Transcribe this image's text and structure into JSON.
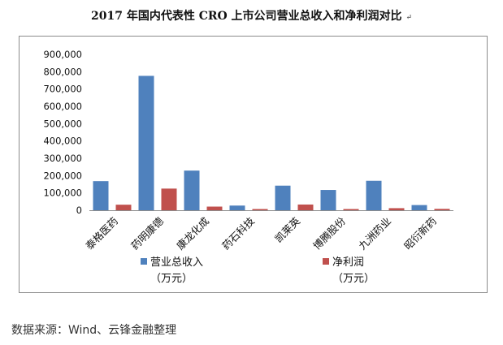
{
  "title": "2017 年国内代表性 CRO 上市公司营业总收入和净利润对比",
  "title_mark": "↵",
  "source": "数据来源：Wind、云锋金融整理",
  "chart_data": {
    "type": "bar",
    "title": "2017 年国内代表性 CRO 上市公司营业总收入和净利润对比",
    "categories": [
      "泰格医药",
      "药明康德",
      "康龙化成",
      "药石科技",
      "凯莱英",
      "博腾股份",
      "九洲药业",
      "昭衍新药"
    ],
    "ylim": [
      0,
      900000
    ],
    "yticks": [
      0,
      100000,
      200000,
      300000,
      400000,
      500000,
      600000,
      700000,
      800000,
      900000
    ],
    "ytick_labels": [
      "0",
      "100,000",
      "200,000",
      "300,000",
      "400,000",
      "500,000",
      "600,000",
      "700,000",
      "800,000",
      "900,000"
    ],
    "grid": false,
    "legend_position": "bottom",
    "series": [
      {
        "name": "营业总收入",
        "unit": "（万元）",
        "color": "#4f81bd",
        "values": [
          168000,
          776000,
          229000,
          27000,
          142000,
          117000,
          170000,
          30000
        ]
      },
      {
        "name": "净利润",
        "unit": "（万元）",
        "color": "#c0504d",
        "values": [
          32000,
          125000,
          21000,
          7000,
          33000,
          7000,
          12000,
          8000
        ]
      }
    ]
  }
}
